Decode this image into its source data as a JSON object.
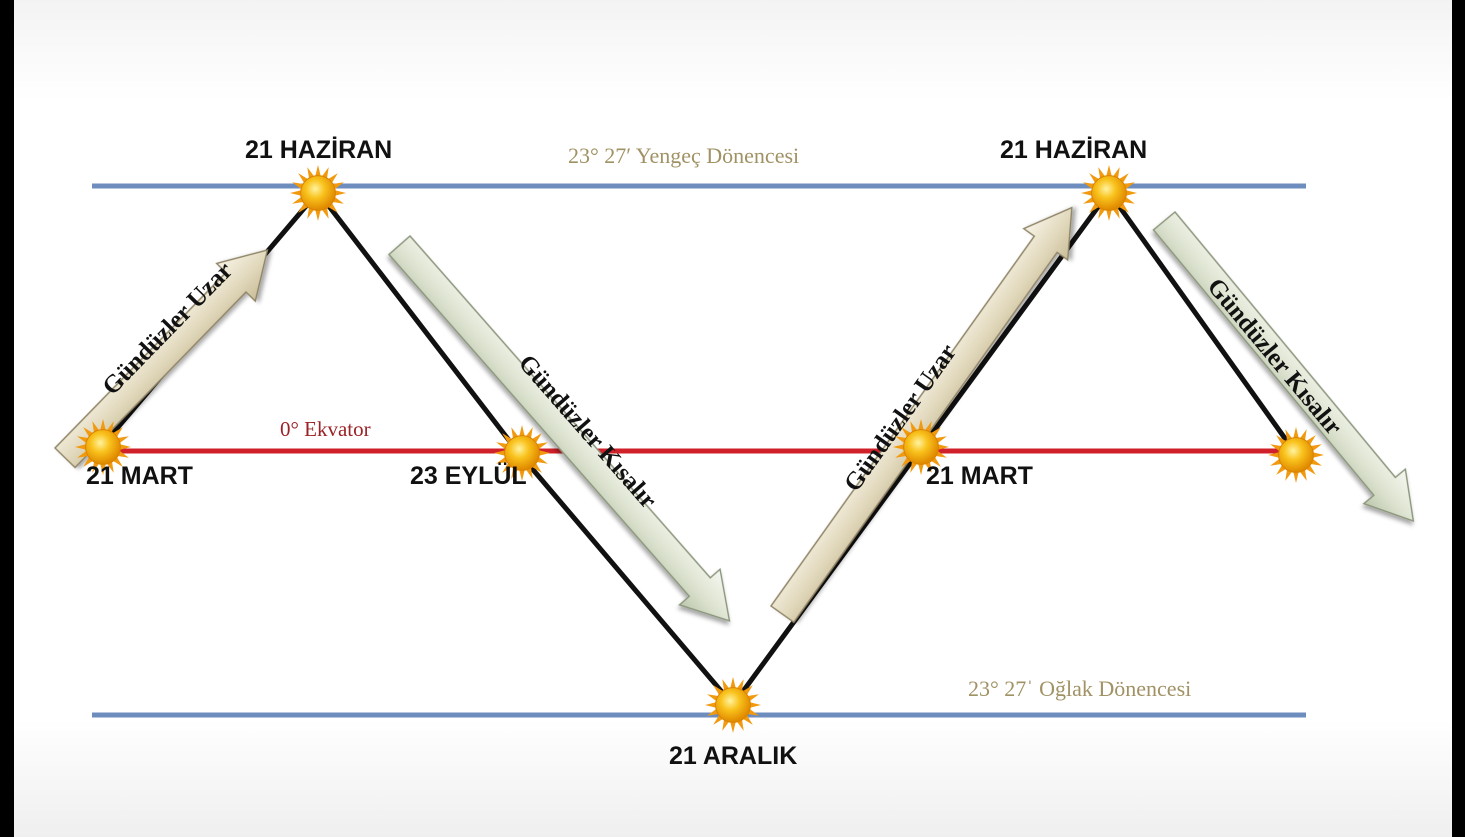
{
  "lines": {
    "tropic_cancer": "23° 27′  Yengeç Dönencesi",
    "equator": "0° Ekvator",
    "tropic_capricorn": "23° 27ˈ  Oğlak Dönencesi"
  },
  "dates": {
    "jun21_a": "21 HAZİRAN",
    "jun21_b": "21 HAZİRAN",
    "mar21_a": "21 MART",
    "sep23": "23 EYLÜL",
    "dec21": "21 ARALIK",
    "mar21_b": "21 MART"
  },
  "arrows": {
    "a1": "Gündüzler Uzar",
    "a2": "Gündüzler Kısalır",
    "a3": "Gündüzler Uzar",
    "a4": "Gündüzler Kısalır"
  },
  "colors": {
    "tropic_line": "#6d8dbf",
    "equator_line": "#d0202a",
    "path_line": "#111111",
    "arrow_uzar_fill": "#e4dcc2",
    "arrow_kisalir_fill": "#dfe5d3",
    "sun_core": "#f7b315",
    "sun_rays": "#f29a0f"
  },
  "icons": [
    "sun-icon",
    "arrow-icon"
  ]
}
